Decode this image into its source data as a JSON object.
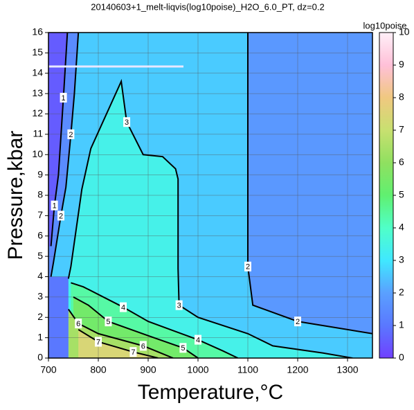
{
  "chart_data": {
    "type": "contour",
    "title": "20140603+1_melt-liqvis(log10poise)_H2O_6.0_PT, dz=0.2",
    "x_label": "Temperature,°C",
    "y_label": "Pressure,kbar",
    "xlim": [
      700,
      1350
    ],
    "xticks": [
      700,
      800,
      900,
      1000,
      1100,
      1200,
      1300
    ],
    "ylim": [
      0,
      16
    ],
    "yticks": [
      0,
      1,
      2,
      3,
      4,
      5,
      6,
      7,
      8,
      9,
      10,
      11,
      12,
      13,
      14,
      15,
      16
    ],
    "grid": true,
    "colorbar": {
      "label": "log10poise",
      "lim": [
        0,
        10
      ],
      "ticks": [
        0,
        1,
        2,
        3,
        4,
        5,
        6,
        7,
        8,
        9,
        10
      ],
      "colors": [
        "#7040ff",
        "#5a78ff",
        "#5aa0ff",
        "#40e8ff",
        "#50ffc8",
        "#60f070",
        "#90e060",
        "#c8e070",
        "#f0c880",
        "#ffc0d8",
        "#fff0f8"
      ]
    },
    "contours": [
      {
        "level": 1,
        "x": [
          705,
          712,
          720,
          730,
          738
        ],
        "y": [
          5.5,
          7.5,
          9,
          12.8,
          16
        ]
      },
      {
        "level": 2,
        "x": [
          705,
          710,
          725,
          735,
          745,
          752,
          760
        ],
        "y": [
          4,
          4.7,
          7,
          8.4,
          11,
          13,
          16
        ]
      },
      {
        "level": 2,
        "x": [
          1100,
          1100,
          1110,
          1200,
          1350
        ],
        "y": [
          16,
          4.5,
          2.6,
          1.8,
          1.2
        ]
      },
      {
        "level": 3,
        "x": [
          740,
          745,
          767,
          785,
          846,
          857,
          890,
          929,
          955,
          960,
          960,
          962,
          1000,
          1100,
          1150,
          1250,
          1310
        ],
        "y": [
          3.9,
          4.5,
          8.3,
          10.3,
          13.6,
          11.6,
          10,
          9.9,
          9.3,
          8.8,
          4.4,
          2.6,
          2,
          1.2,
          0.6,
          0.25,
          0
        ]
      },
      {
        "level": 4,
        "x": [
          745,
          770,
          850,
          900,
          1000,
          1050,
          1080
        ],
        "y": [
          3.7,
          3.5,
          2.5,
          1.8,
          0.9,
          0.35,
          0
        ]
      },
      {
        "level": 5,
        "x": [
          750,
          780,
          820,
          900,
          970,
          1000
        ],
        "y": [
          3,
          2.6,
          1.8,
          1.1,
          0.5,
          0
        ]
      },
      {
        "level": 6,
        "x": [
          740,
          760,
          800,
          890,
          950
        ],
        "y": [
          2.4,
          1.7,
          1.2,
          0.6,
          0
        ]
      },
      {
        "level": 7,
        "x": [
          760,
          800,
          870,
          920
        ],
        "y": [
          1.4,
          0.8,
          0.3,
          0
        ]
      }
    ]
  }
}
